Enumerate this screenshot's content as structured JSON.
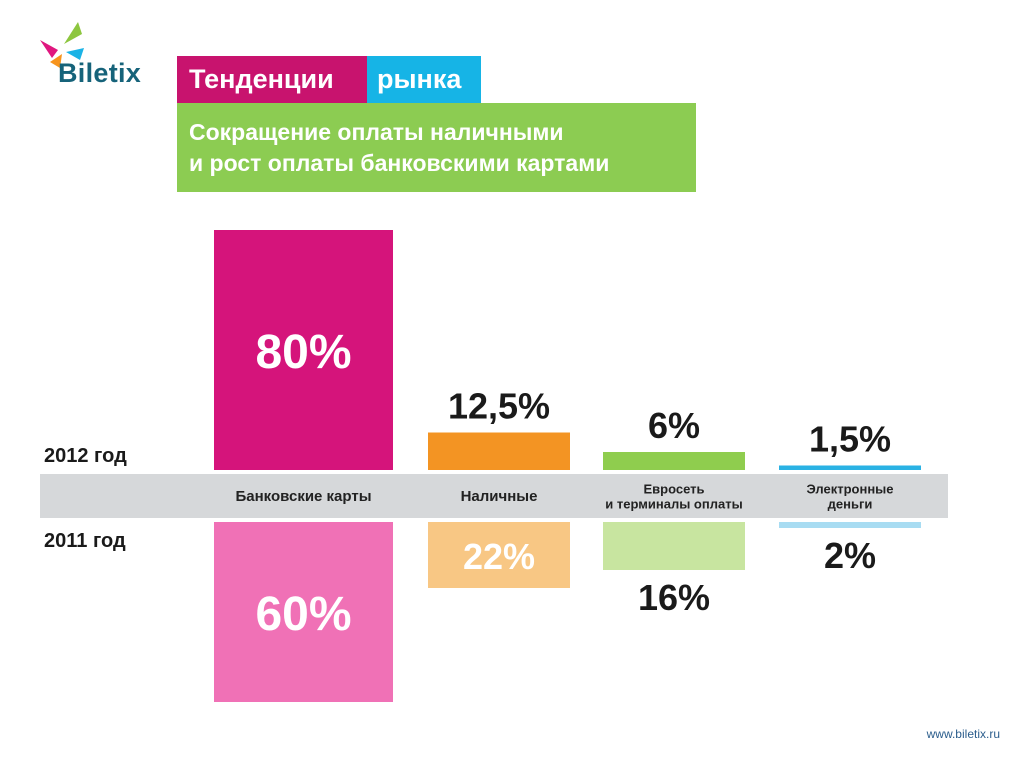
{
  "logo": {
    "text": "Biletix"
  },
  "header": {
    "title_part1": "Тенденции",
    "title_part2": "рынка",
    "subtitle_line1": "Сокращение оплаты наличными",
    "subtitle_line2": "и рост оплаты банковскими картами"
  },
  "colors": {
    "magenta": "#d5147b",
    "magenta_light": "#f071b6",
    "orange": "#f39423",
    "orange_light": "#f8c784",
    "green": "#8fcd4e",
    "green_light": "#c8e5a0",
    "blue": "#2ab2e4",
    "blue_light": "#a8dcf2",
    "axis_band": "#d6d8da"
  },
  "chart_data": {
    "type": "bar",
    "categories": [
      {
        "lines": [
          "Банковские карты"
        ]
      },
      {
        "lines": [
          "Наличные"
        ]
      },
      {
        "lines": [
          "Евросеть",
          "и терминалы оплаты"
        ]
      },
      {
        "lines": [
          "Электронные",
          "деньги"
        ]
      }
    ],
    "series": [
      {
        "name": "2012 год",
        "values": [
          80,
          12.5,
          6,
          1.5
        ],
        "labels": [
          "80%",
          "12,5%",
          "6%",
          "1,5%"
        ]
      },
      {
        "name": "2011 год",
        "values": [
          60,
          22,
          16,
          2
        ],
        "labels": [
          "60%",
          "22%",
          "16%",
          "2%"
        ]
      }
    ],
    "unit": "%"
  },
  "footer": {
    "url": "www.biletix.ru"
  }
}
